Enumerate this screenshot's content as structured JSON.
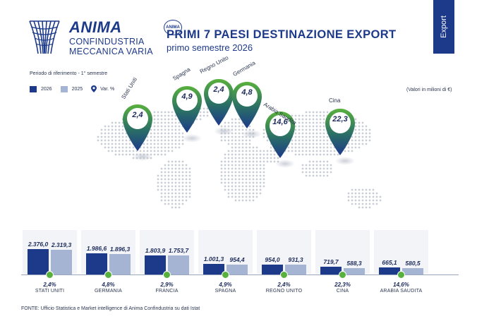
{
  "header": {
    "logo_brand": "ANIMA",
    "logo_line2": "CONFINDUSTRIA",
    "logo_line3": "MECCANICA VARIA",
    "badge": "ANIMA",
    "title": "PRIMI 7 PAESI DESTINAZIONE EXPORT",
    "subtitle": "primo semestre 2026",
    "tab": "Export"
  },
  "legend": {
    "period": "Periodo di riferimento - 1° semestre",
    "label_2026": "2026",
    "label_2025": "2025",
    "label_var": "Var. %",
    "units": "(Valori in milioni di €)"
  },
  "source": "FONTE: Ufficio Statistica e Market intelligence di Anima Confindustria su dati Istat",
  "colors": {
    "navy": "#1d3a8a",
    "light": "#a5b4d2",
    "green": "#59b13d",
    "pin_dark": "#1d3a8a"
  },
  "chart_data": {
    "type": "bar",
    "title": "PRIMI 7 PAESI DESTINAZIONE EXPORT",
    "subtitle": "primo semestre 2026",
    "ylabel": "(Valori in milioni di €)",
    "categories": [
      "STATI UNITI",
      "GERMANIA",
      "FRANCIA",
      "SPAGNA",
      "REGNO UNITO",
      "CINA",
      "ARABIA SAUDITA"
    ],
    "series": [
      {
        "name": "2026",
        "values": [
          2376.0,
          1986.6,
          1803.9,
          1001.3,
          954.0,
          719.7,
          665.1
        ],
        "labels": [
          "2.376,0",
          "1.986,6",
          "1.803,9",
          "1.001,3",
          "954,0",
          "719,7",
          "665,1"
        ]
      },
      {
        "name": "2025",
        "values": [
          2319.3,
          1896.3,
          1753.7,
          954.4,
          931.3,
          588.3,
          580.5
        ],
        "labels": [
          "2.319,3",
          "1.896,3",
          "1.753,7",
          "954,4",
          "931,3",
          "588,3",
          "580,5"
        ]
      }
    ],
    "var_pct": [
      "2,4%",
      "4,8%",
      "2,9%",
      "4,9%",
      "2,4%",
      "22,3%",
      "14,6%"
    ],
    "ylim": [
      0,
      2376.0
    ],
    "legend": "top-left"
  },
  "map_pins": [
    {
      "country": "Stati Uniti",
      "value": "2,4"
    },
    {
      "country": "Spagna",
      "value": "4,9"
    },
    {
      "country": "Regno Unito",
      "value": "2,4"
    },
    {
      "country": "Germania",
      "value": "4,8"
    },
    {
      "country": "Arabia Saudita",
      "value": "14,6"
    },
    {
      "country": "Cina",
      "value": "22,3"
    }
  ]
}
